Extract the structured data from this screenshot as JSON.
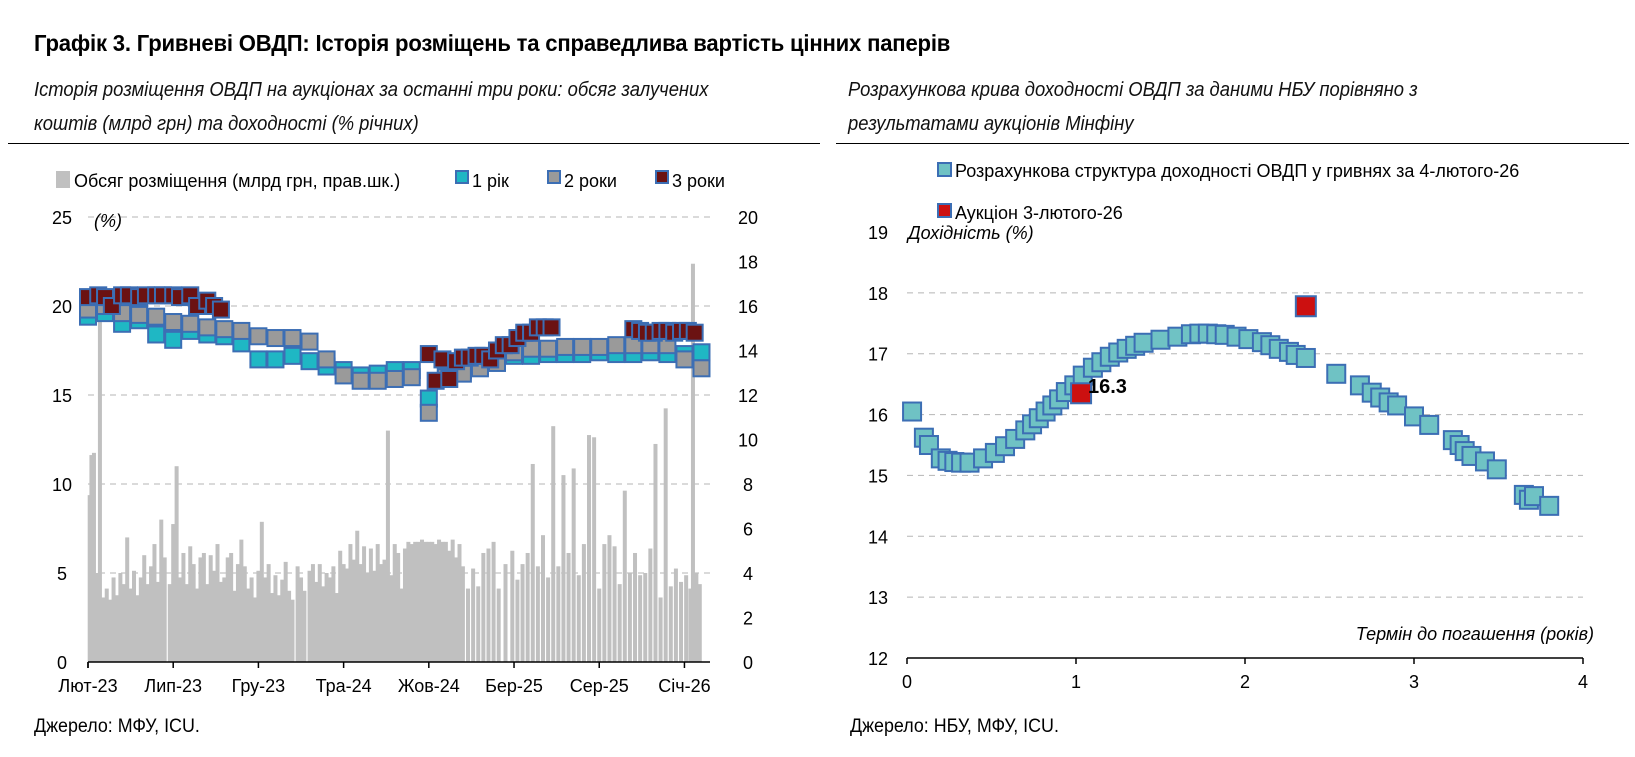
{
  "header": {
    "title": "Графік 3. Гривневі ОВДП: Історія розміщень та справедлива вартість цінних паперів"
  },
  "left": {
    "subtitle_line1": "Історія розміщення ОВДП на аукціонах за останні три роки: обсяг залучених",
    "subtitle_line2": "коштів (млрд грн) та доходності (% річних)",
    "source": "Джерело: МФУ, ICU."
  },
  "right": {
    "subtitle_line1": "Розрахункова крива доходності ОВДП за даними НБУ порівняно з",
    "subtitle_line2": "результатами аукціонів Мінфіну",
    "source": "Джерело: НБУ, МФУ, ICU."
  },
  "colors": {
    "bar": "#c0c0c0",
    "one_year": "#1fb7c4",
    "two_year": "#9a9a9a",
    "three_year": "#6b1212",
    "marker_edge": "#3c6eb4",
    "curve_fill": "#6fc2c4",
    "auction_fill": "#cc1010",
    "grid": "#b5b5b5"
  },
  "chart_data": [
    {
      "type": "bar+scatter",
      "legend": {
        "bars": "Обсяг розміщення (млрд грн, прав.шк.)",
        "s1": "1 рік",
        "s2": "2 роки",
        "s3": "3 роки"
      },
      "y_left": {
        "label": "(%)",
        "lim": [
          0,
          25
        ],
        "ticks": [
          0,
          5,
          10,
          15,
          20,
          25
        ]
      },
      "y_right": {
        "lim": [
          0,
          20
        ],
        "ticks": [
          0,
          2,
          4,
          6,
          8,
          10,
          12,
          14,
          16,
          18,
          20
        ]
      },
      "x_labels": [
        "Лют-23",
        "Лип-23",
        "Гру-23",
        "Тра-24",
        "Жов-24",
        "Бер-25",
        "Сер-25",
        "Січ-26"
      ],
      "x_label_pos": [
        0,
        5,
        10,
        15,
        20,
        25,
        30,
        35
      ],
      "x_range": [
        0,
        36.5
      ],
      "bars": [
        [
          0.1,
          7.5
        ],
        [
          0.2,
          9.3
        ],
        [
          0.35,
          9.4
        ],
        [
          0.5,
          4.0
        ],
        [
          0.7,
          16.2
        ],
        [
          0.9,
          2.9
        ],
        [
          1.1,
          3.3
        ],
        [
          1.3,
          2.8
        ],
        [
          1.5,
          3.8
        ],
        [
          1.7,
          3.0
        ],
        [
          1.9,
          4.0
        ],
        [
          2.1,
          3.5
        ],
        [
          2.3,
          5.6
        ],
        [
          2.5,
          3.3
        ],
        [
          2.7,
          4.1
        ],
        [
          2.9,
          3.0
        ],
        [
          3.1,
          3.8
        ],
        [
          3.3,
          4.8
        ],
        [
          3.5,
          3.5
        ],
        [
          3.7,
          4.3
        ],
        [
          3.9,
          5.3
        ],
        [
          4.1,
          3.6
        ],
        [
          4.3,
          6.4
        ],
        [
          4.5,
          4.7
        ],
        [
          4.8,
          3.5
        ],
        [
          5.0,
          6.2
        ],
        [
          5.2,
          8.8
        ],
        [
          5.4,
          3.8
        ],
        [
          5.6,
          4.9
        ],
        [
          5.8,
          3.5
        ],
        [
          6.0,
          5.2
        ],
        [
          6.2,
          4.4
        ],
        [
          6.4,
          3.3
        ],
        [
          6.6,
          4.7
        ],
        [
          6.8,
          4.9
        ],
        [
          7.0,
          3.5
        ],
        [
          7.2,
          4.8
        ],
        [
          7.4,
          4.1
        ],
        [
          7.6,
          5.3
        ],
        [
          7.8,
          3.6
        ],
        [
          8.0,
          3.8
        ],
        [
          8.2,
          4.7
        ],
        [
          8.4,
          4.9
        ],
        [
          8.6,
          3.2
        ],
        [
          8.8,
          4.4
        ],
        [
          9.0,
          5.5
        ],
        [
          9.2,
          4.3
        ],
        [
          9.4,
          3.3
        ],
        [
          9.6,
          3.8
        ],
        [
          9.8,
          2.9
        ],
        [
          10.0,
          4.1
        ],
        [
          10.2,
          6.3
        ],
        [
          10.4,
          3.8
        ],
        [
          10.6,
          4.4
        ],
        [
          10.8,
          3.1
        ],
        [
          11.0,
          3.9
        ],
        [
          11.2,
          3.0
        ],
        [
          11.4,
          3.7
        ],
        [
          11.6,
          4.5
        ],
        [
          11.8,
          3.2
        ],
        [
          12.0,
          2.8
        ],
        [
          12.3,
          4.3
        ],
        [
          12.5,
          3.8
        ],
        [
          12.7,
          3.2
        ],
        [
          13.0,
          4.1
        ],
        [
          13.2,
          4.4
        ],
        [
          13.4,
          3.6
        ],
        [
          13.6,
          4.4
        ],
        [
          13.8,
          3.4
        ],
        [
          14.0,
          4.0
        ],
        [
          14.2,
          3.8
        ],
        [
          14.4,
          4.3
        ],
        [
          14.6,
          3.1
        ],
        [
          14.8,
          5.0
        ],
        [
          15.0,
          4.4
        ],
        [
          15.2,
          4.2
        ],
        [
          15.4,
          5.3
        ],
        [
          15.6,
          4.6
        ],
        [
          15.8,
          5.9
        ],
        [
          16.0,
          4.4
        ],
        [
          16.2,
          5.2
        ],
        [
          16.4,
          4.0
        ],
        [
          16.6,
          5.1
        ],
        [
          16.8,
          4.1
        ],
        [
          17.0,
          5.3
        ],
        [
          17.2,
          4.4
        ],
        [
          17.4,
          4.6
        ],
        [
          17.6,
          10.4
        ],
        [
          17.8,
          3.9
        ],
        [
          18.0,
          5.3
        ],
        [
          18.2,
          4.9
        ],
        [
          18.4,
          3.3
        ],
        [
          18.6,
          5.1
        ],
        [
          18.8,
          5.4
        ],
        [
          19.0,
          5.3
        ],
        [
          19.2,
          5.4
        ],
        [
          19.4,
          5.4
        ],
        [
          19.6,
          5.5
        ],
        [
          19.8,
          5.4
        ],
        [
          20.0,
          5.4
        ],
        [
          20.2,
          5.4
        ],
        [
          20.4,
          5.3
        ],
        [
          20.6,
          5.5
        ],
        [
          20.8,
          5.4
        ],
        [
          21.0,
          5.4
        ],
        [
          21.2,
          5.0
        ],
        [
          21.4,
          5.5
        ],
        [
          21.6,
          4.7
        ],
        [
          21.8,
          5.3
        ],
        [
          22.0,
          4.3
        ],
        [
          22.3,
          3.3
        ],
        [
          22.6,
          4.2
        ],
        [
          22.9,
          3.4
        ],
        [
          23.2,
          4.9
        ],
        [
          23.5,
          5.1
        ],
        [
          23.8,
          5.4
        ],
        [
          24.1,
          3.3
        ],
        [
          24.5,
          4.4
        ],
        [
          24.9,
          5.0
        ],
        [
          25.2,
          3.7
        ],
        [
          25.5,
          4.4
        ],
        [
          25.8,
          4.9
        ],
        [
          26.1,
          8.9
        ],
        [
          26.4,
          4.3
        ],
        [
          26.7,
          5.7
        ],
        [
          27.0,
          3.8
        ],
        [
          27.3,
          10.6
        ],
        [
          27.6,
          4.3
        ],
        [
          27.9,
          8.4
        ],
        [
          28.2,
          4.9
        ],
        [
          28.5,
          8.7
        ],
        [
          28.8,
          3.9
        ],
        [
          29.1,
          5.3
        ],
        [
          29.4,
          10.2
        ],
        [
          29.7,
          10.1
        ],
        [
          30.0,
          3.3
        ],
        [
          30.3,
          5.3
        ],
        [
          30.6,
          5.7
        ],
        [
          30.9,
          5.2
        ],
        [
          31.2,
          3.5
        ],
        [
          31.5,
          7.7
        ],
        [
          31.8,
          4.0
        ],
        [
          32.1,
          4.9
        ],
        [
          32.4,
          3.9
        ],
        [
          32.7,
          4.0
        ],
        [
          33.0,
          5.1
        ],
        [
          33.3,
          9.8
        ],
        [
          33.6,
          2.9
        ],
        [
          33.9,
          11.4
        ],
        [
          34.2,
          3.4
        ],
        [
          34.5,
          4.2
        ],
        [
          34.8,
          3.6
        ],
        [
          35.1,
          3.9
        ],
        [
          35.35,
          3.3
        ],
        [
          35.5,
          17.9
        ],
        [
          35.7,
          4.0
        ],
        [
          35.9,
          3.5
        ]
      ],
      "one_year": [
        [
          0,
          19.4
        ],
        [
          1,
          19.6
        ],
        [
          2,
          19.0
        ],
        [
          3,
          19.2
        ],
        [
          4,
          18.4
        ],
        [
          5,
          18.1
        ],
        [
          6,
          18.6
        ],
        [
          7,
          18.4
        ],
        [
          8,
          18.3
        ],
        [
          9,
          17.9
        ],
        [
          10,
          17.0
        ],
        [
          11,
          17.0
        ],
        [
          12,
          17.2
        ],
        [
          13,
          16.9
        ],
        [
          14,
          16.6
        ],
        [
          15,
          16.4
        ],
        [
          16,
          16.1
        ],
        [
          17,
          16.2
        ],
        [
          18,
          16.4
        ],
        [
          19,
          16.4
        ],
        [
          20,
          14.8
        ],
        [
          21,
          16.4
        ],
        [
          22,
          16.4
        ],
        [
          23,
          16.6
        ],
        [
          24,
          16.9
        ],
        [
          25,
          17.2
        ],
        [
          26,
          17.2
        ],
        [
          27,
          17.3
        ],
        [
          28,
          17.3
        ],
        [
          29,
          17.3
        ],
        [
          30,
          17.4
        ],
        [
          31,
          17.3
        ],
        [
          32,
          17.3
        ],
        [
          33,
          17.4
        ],
        [
          34,
          17.3
        ],
        [
          35,
          17.3
        ],
        [
          36,
          17.4
        ]
      ],
      "two_year": [
        [
          0,
          19.8
        ],
        [
          1,
          20.0
        ],
        [
          2,
          19.6
        ],
        [
          3,
          19.5
        ],
        [
          4,
          19.4
        ],
        [
          5,
          19.1
        ],
        [
          6,
          19.0
        ],
        [
          7,
          18.8
        ],
        [
          8,
          18.7
        ],
        [
          9,
          18.6
        ],
        [
          10,
          18.3
        ],
        [
          11,
          18.2
        ],
        [
          12,
          18.2
        ],
        [
          13,
          18.0
        ],
        [
          14,
          17.0
        ],
        [
          15,
          16.1
        ],
        [
          16,
          15.8
        ],
        [
          17,
          15.8
        ],
        [
          18,
          15.9
        ],
        [
          19,
          16.0
        ],
        [
          20,
          14.0
        ],
        [
          21,
          16.0
        ],
        [
          22,
          16.2
        ],
        [
          23,
          16.5
        ],
        [
          24,
          16.8
        ],
        [
          25,
          17.4
        ],
        [
          26,
          17.6
        ],
        [
          27,
          17.6
        ],
        [
          28,
          17.7
        ],
        [
          29,
          17.7
        ],
        [
          30,
          17.7
        ],
        [
          31,
          17.8
        ],
        [
          32,
          17.8
        ],
        [
          33,
          17.8
        ],
        [
          34,
          17.8
        ],
        [
          35,
          17.0
        ],
        [
          36,
          16.5
        ]
      ],
      "three_year": [
        [
          0,
          20.5
        ],
        [
          0.6,
          20.6
        ],
        [
          1.0,
          20.5
        ],
        [
          1.4,
          20.0
        ],
        [
          2.0,
          20.6
        ],
        [
          2.4,
          20.6
        ],
        [
          3.0,
          20.5
        ],
        [
          3.4,
          20.6
        ],
        [
          4.0,
          20.6
        ],
        [
          4.4,
          20.6
        ],
        [
          5.0,
          20.6
        ],
        [
          5.4,
          20.5
        ],
        [
          6.0,
          20.6
        ],
        [
          6.4,
          20.0
        ],
        [
          7.0,
          20.3
        ],
        [
          7.4,
          20.0
        ],
        [
          7.8,
          19.8
        ],
        [
          20.0,
          17.3
        ],
        [
          20.4,
          15.8
        ],
        [
          20.8,
          17.0
        ],
        [
          21.2,
          15.9
        ],
        [
          21.6,
          16.9
        ],
        [
          22.0,
          17.1
        ],
        [
          22.4,
          17.1
        ],
        [
          22.8,
          17.2
        ],
        [
          23.2,
          17.2
        ],
        [
          23.6,
          17.0
        ],
        [
          24.0,
          17.5
        ],
        [
          24.4,
          17.8
        ],
        [
          24.8,
          17.8
        ],
        [
          25.2,
          18.2
        ],
        [
          25.6,
          18.5
        ],
        [
          26.0,
          18.5
        ],
        [
          26.4,
          18.8
        ],
        [
          26.8,
          18.8
        ],
        [
          27.2,
          18.8
        ],
        [
          32.0,
          18.7
        ],
        [
          32.4,
          18.6
        ],
        [
          32.8,
          18.5
        ],
        [
          33.2,
          18.5
        ],
        [
          33.6,
          18.6
        ],
        [
          34.0,
          18.6
        ],
        [
          34.4,
          18.5
        ],
        [
          34.8,
          18.6
        ],
        [
          35.2,
          18.6
        ],
        [
          35.6,
          18.5
        ]
      ]
    },
    {
      "type": "scatter",
      "legend": {
        "curve": "Розрахункова структура доходності ОВДП у гривнях за 4-лютого-26",
        "auction": "Аукціон 3-лютого-26"
      },
      "ylabel": "Дохідність (%)",
      "xlabel": "Термін до погашення (років)",
      "xlim": [
        0,
        4
      ],
      "ylim": [
        12,
        19
      ],
      "x_ticks": [
        0,
        1,
        2,
        3,
        4
      ],
      "y_ticks": [
        12,
        13,
        14,
        15,
        16,
        17,
        18,
        19
      ],
      "curve": [
        [
          0.03,
          16.05
        ],
        [
          0.1,
          15.62
        ],
        [
          0.13,
          15.5
        ],
        [
          0.2,
          15.28
        ],
        [
          0.24,
          15.24
        ],
        [
          0.28,
          15.22
        ],
        [
          0.32,
          15.21
        ],
        [
          0.37,
          15.21
        ],
        [
          0.45,
          15.28
        ],
        [
          0.52,
          15.37
        ],
        [
          0.58,
          15.48
        ],
        [
          0.64,
          15.6
        ],
        [
          0.7,
          15.74
        ],
        [
          0.74,
          15.84
        ],
        [
          0.78,
          15.94
        ],
        [
          0.82,
          16.05
        ],
        [
          0.86,
          16.15
        ],
        [
          0.9,
          16.25
        ],
        [
          0.94,
          16.37
        ],
        [
          0.99,
          16.48
        ],
        [
          1.04,
          16.64
        ],
        [
          1.1,
          16.77
        ],
        [
          1.15,
          16.86
        ],
        [
          1.2,
          16.95
        ],
        [
          1.25,
          17.02
        ],
        [
          1.3,
          17.08
        ],
        [
          1.35,
          17.13
        ],
        [
          1.4,
          17.18
        ],
        [
          1.5,
          17.23
        ],
        [
          1.6,
          17.28
        ],
        [
          1.68,
          17.32
        ],
        [
          1.73,
          17.33
        ],
        [
          1.78,
          17.33
        ],
        [
          1.83,
          17.32
        ],
        [
          1.88,
          17.31
        ],
        [
          1.95,
          17.28
        ],
        [
          2.02,
          17.24
        ],
        [
          2.1,
          17.19
        ],
        [
          2.15,
          17.14
        ],
        [
          2.2,
          17.08
        ],
        [
          2.26,
          17.03
        ],
        [
          2.3,
          16.98
        ],
        [
          2.36,
          16.93
        ],
        [
          2.54,
          16.67
        ],
        [
          2.68,
          16.48
        ],
        [
          2.75,
          16.36
        ],
        [
          2.8,
          16.28
        ],
        [
          2.85,
          16.2
        ],
        [
          2.9,
          16.15
        ],
        [
          3.0,
          15.97
        ],
        [
          3.09,
          15.83
        ],
        [
          3.23,
          15.58
        ],
        [
          3.27,
          15.5
        ],
        [
          3.3,
          15.4
        ],
        [
          3.34,
          15.32
        ],
        [
          3.42,
          15.23
        ],
        [
          3.49,
          15.1
        ],
        [
          3.65,
          14.68
        ],
        [
          3.68,
          14.6
        ],
        [
          3.71,
          14.66
        ],
        [
          3.8,
          14.5
        ]
      ],
      "auction": [
        [
          1.03,
          16.35
        ],
        [
          2.36,
          17.78
        ]
      ],
      "annotation": "16.3"
    }
  ]
}
